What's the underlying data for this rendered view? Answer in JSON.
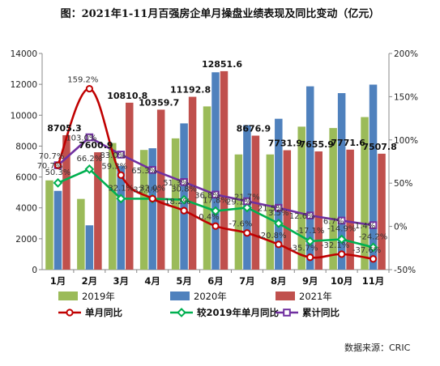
{
  "title": "图：2021年1-11月百强房企单月操盘业绩表现及同比变动（亿元）",
  "source": "数据来源：CRIC",
  "chart_data": {
    "type": "bar+line",
    "categories": [
      "1月",
      "2月",
      "3月",
      "4月",
      "5月",
      "6月",
      "7月",
      "8月",
      "9月",
      "10月",
      "11月"
    ],
    "bar_series": [
      {
        "name": "2019年",
        "color": "#9bbb59",
        "values": [
          5780,
          4580,
          8200,
          7750,
          8500,
          10570,
          7460,
          7460,
          9260,
          9170,
          9880
        ]
      },
      {
        "name": "2020年",
        "color": "#4f81bd",
        "values": [
          5100,
          2870,
          6710,
          7860,
          9470,
          12780,
          9360,
          9770,
          11870,
          11430,
          11980
        ]
      },
      {
        "name": "2021年",
        "color": "#c0504d",
        "values": [
          8705.3,
          7600.9,
          10810.8,
          10359.7,
          11192.8,
          12851.6,
          8676.9,
          7731.9,
          7655.9,
          7771.6,
          7507.8
        ]
      }
    ],
    "bar_labels": {
      "series": "2021年",
      "texts": [
        "8705.3",
        "7600.9",
        "10810.8",
        "10359.7",
        "11192.8",
        "12851.6",
        "8676.9",
        "7731.9",
        "7655.9",
        "7771.6",
        "7507.8"
      ]
    },
    "line_series": [
      {
        "name": "单月同比",
        "color": "#c00000",
        "smooth": true,
        "marker": "circle",
        "values": [
          70.7,
          159.2,
          59.3,
          32.1,
          18.2,
          0.4,
          -7.6,
          -20.8,
          -35.7,
          -32.1,
          -37.6
        ],
        "labels": [
          "70.7%",
          "159.2%",
          "59.3%",
          "32.1%",
          "18.2%",
          "0.4%",
          "-7.6%",
          "-20.8%",
          "-35.7%",
          "-32.1%",
          "-37.6%"
        ]
      },
      {
        "name": "较2019年单月同比",
        "color": "#00b050",
        "smooth": false,
        "marker": "diamond",
        "values": [
          50.3,
          66.2,
          32.1,
          32.0,
          30.8,
          17.8,
          21.7,
          3.5,
          -17.1,
          -14.9,
          -24.2
        ],
        "labels": [
          "50.3%",
          "66.2%",
          "32.1%",
          "32.0%",
          "30.8%",
          "17.8%",
          "21.7%",
          "3.5%",
          "-17.1%",
          "-14.9%",
          "-24.2%"
        ]
      },
      {
        "name": "累计同比",
        "color": "#7030a0",
        "smooth": false,
        "marker": "square",
        "values": [
          70.7,
          103.0,
          83.0,
          65.3,
          51.3,
          36.8,
          29.1,
          21.5,
          12.6,
          6.7,
          1.4
        ],
        "labels": [
          "70.7%",
          "103.0%",
          "83.0%",
          "65.3%",
          "51.3%",
          "36.8%",
          "29.1%",
          "21.5%",
          "12.6%",
          "6.7%",
          "1.4%"
        ]
      }
    ],
    "y_left": {
      "min": 0,
      "max": 14000,
      "step": 2000,
      "ticks": [
        "0",
        "2000",
        "4000",
        "6000",
        "8000",
        "10000",
        "12000",
        "14000"
      ]
    },
    "y_right": {
      "min": -50,
      "max": 200,
      "step": 50,
      "ticks": [
        "-50%",
        "0%",
        "50%",
        "100%",
        "150%",
        "200%"
      ]
    },
    "legend_position": "bottom",
    "grid": false
  }
}
